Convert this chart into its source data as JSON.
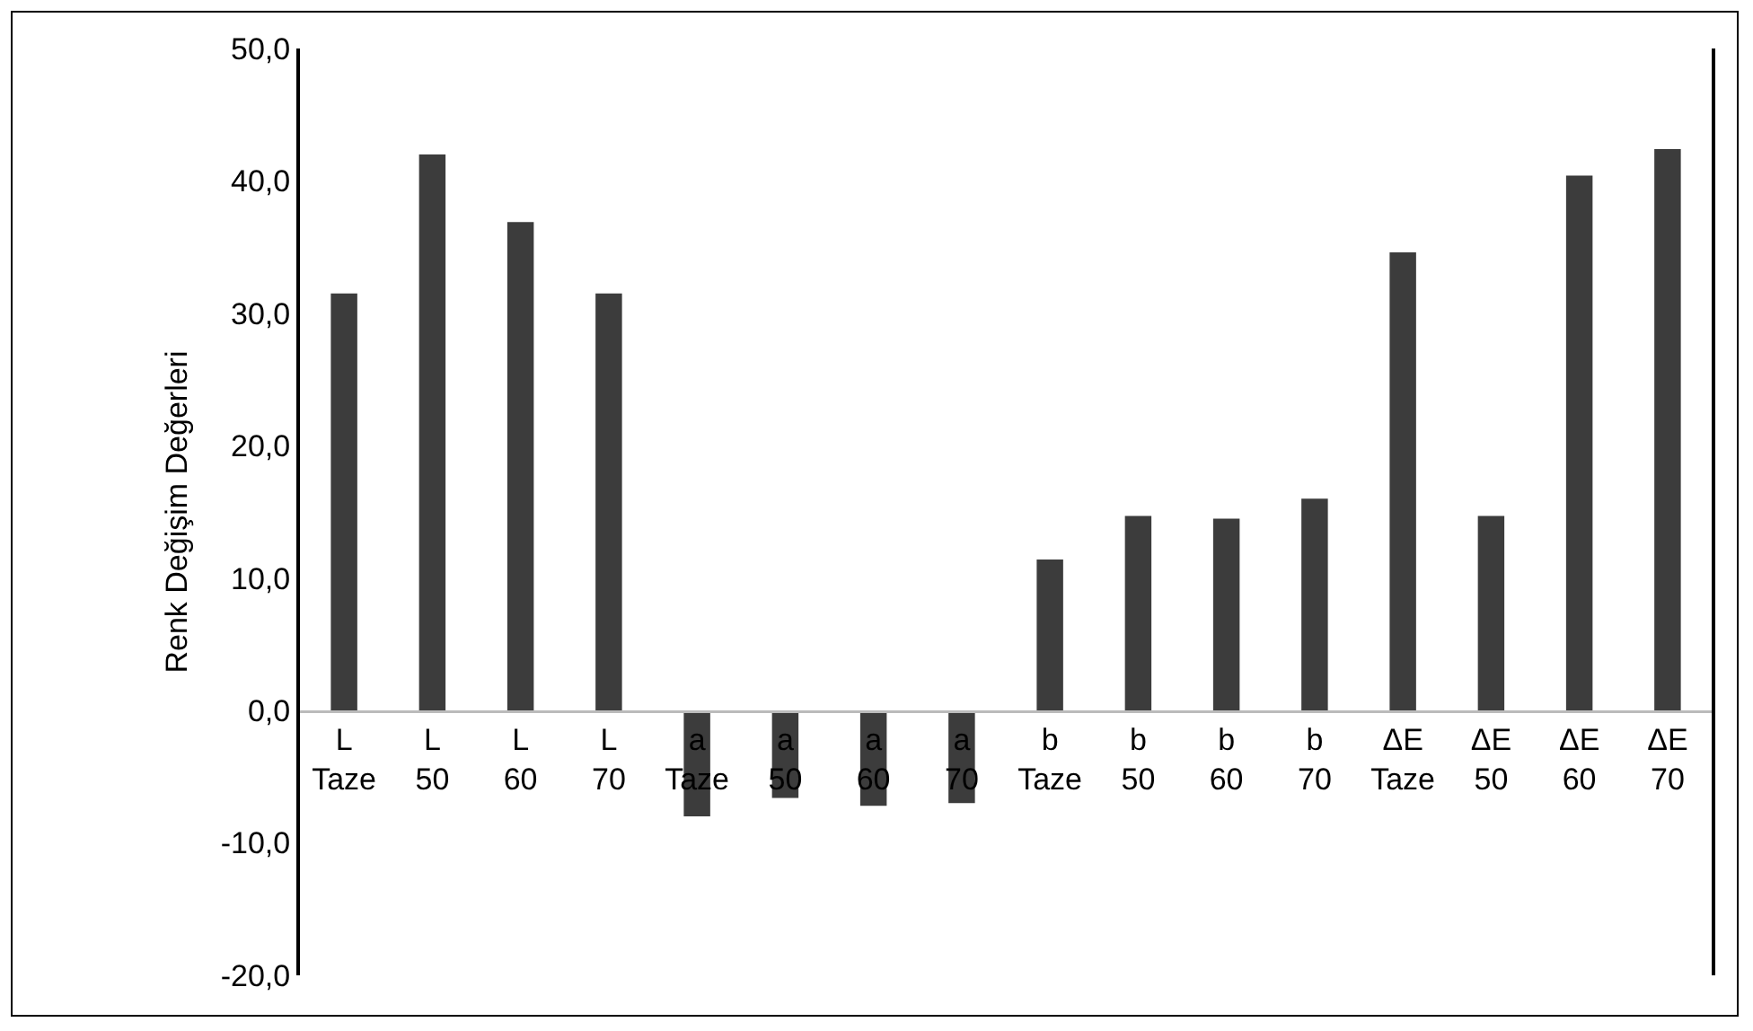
{
  "chart_data": {
    "type": "bar",
    "ylabel": "Renk Değişim Değerleri",
    "categories": [
      "L\nTaze",
      "L\n50",
      "L\n60",
      "L\n70",
      "a\nTaze",
      "a\n50",
      "a\n60",
      "a\n70",
      "b\nTaze",
      "b\n50",
      "b\n60",
      "b\n70",
      "ΔE\nTaze",
      "ΔE\n50",
      "ΔE\n60",
      "ΔE\n70"
    ],
    "values": [
      31.5,
      42.0,
      36.9,
      31.5,
      -8.0,
      -6.6,
      -7.2,
      -7.0,
      11.4,
      14.7,
      14.5,
      16.0,
      34.6,
      14.7,
      40.4,
      42.4
    ],
    "color": "#3c3c3c",
    "ylim": [
      -20,
      50
    ],
    "yticks": [
      {
        "value": -20,
        "label": "-20,0"
      },
      {
        "value": -10,
        "label": "-10,0"
      },
      {
        "value": 0,
        "label": "0,0"
      },
      {
        "value": 10,
        "label": "10,0"
      },
      {
        "value": 20,
        "label": "20,0"
      },
      {
        "value": 30,
        "label": "30,0"
      },
      {
        "value": 40,
        "label": "40,0"
      },
      {
        "value": 50,
        "label": "50,0"
      }
    ],
    "grid": false
  }
}
